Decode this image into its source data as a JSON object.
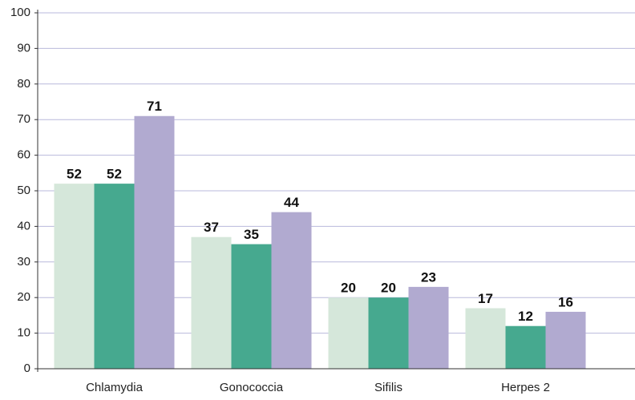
{
  "chart_data": {
    "type": "bar",
    "categories": [
      "Chlamydia",
      "Gonococcia",
      "Sifilis",
      "Herpes 2"
    ],
    "series": [
      {
        "color": "#d5e7da",
        "values": [
          52,
          37,
          20,
          17
        ]
      },
      {
        "color": "#46a98f",
        "values": [
          52,
          35,
          20,
          12
        ]
      },
      {
        "color": "#b1aad0",
        "values": [
          71,
          44,
          23,
          16
        ]
      }
    ],
    "ylim": [
      0,
      100
    ],
    "yticks": [
      0,
      10,
      20,
      30,
      40,
      50,
      60,
      70,
      80,
      90,
      100
    ],
    "grid": true
  }
}
